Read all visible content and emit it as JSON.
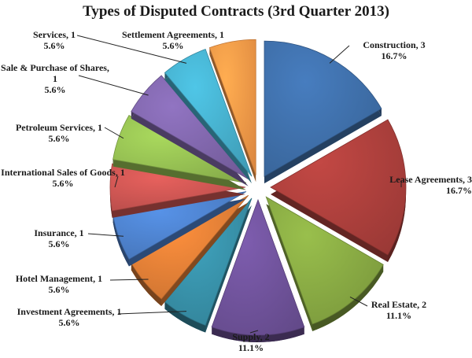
{
  "chart_data": {
    "type": "pie",
    "title": "Types of Disputed Contracts  (3rd Quarter 2013)",
    "slices": [
      {
        "label": "Construction, 3",
        "value": 3,
        "percent": "16.7%",
        "color": "#3c6aa2"
      },
      {
        "label": "Lease Agreements, 3",
        "value": 3,
        "percent": "16.7%",
        "color": "#a53d3a"
      },
      {
        "label": "Real Estate, 2",
        "value": 2,
        "percent": "11.1%",
        "color": "#82a240"
      },
      {
        "label": "Supply, 2",
        "value": 2,
        "percent": "11.1%",
        "color": "#6b4f94"
      },
      {
        "label": "Investment Agreements, 1",
        "value": 1,
        "percent": "5.6%",
        "color": "#358aa1"
      },
      {
        "label": "Hotel Management, 1",
        "value": 1,
        "percent": "5.6%",
        "color": "#d87a34"
      },
      {
        "label": "Insurance, 1",
        "value": 1,
        "percent": "5.6%",
        "color": "#4a7cc4"
      },
      {
        "label": "International Sales of Goods, 1",
        "value": 1,
        "percent": "5.6%",
        "color": "#c4524f"
      },
      {
        "label": "Petroleum Services, 1",
        "value": 1,
        "percent": "5.6%",
        "color": "#8fb84f"
      },
      {
        "label": "Sale & Purchase of Shares, 1",
        "value": 1,
        "percent": "5.6%",
        "color": "#7b62a4"
      },
      {
        "label": "Services, 1",
        "value": 1,
        "percent": "5.6%",
        "color": "#43a8c4"
      },
      {
        "label": "Settlement Agreements, 1",
        "value": 1,
        "percent": "5.6%",
        "color": "#ef9345"
      }
    ]
  }
}
